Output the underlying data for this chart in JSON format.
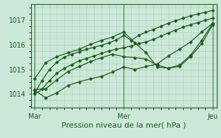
{
  "bg_color": "#cce8d8",
  "grid_color": "#aaccbb",
  "line_color": "#1a5c1a",
  "marker": "D",
  "markersize": 2.5,
  "linewidth": 0.9,
  "xlabel": "Pression niveau de la mer( hPa )",
  "xlabel_fontsize": 8,
  "tick_fontsize": 7,
  "xtick_labels": [
    "Mar",
    "Mer",
    "Jeu"
  ],
  "xtick_positions": [
    0,
    48,
    96
  ],
  "yticks": [
    1014,
    1015,
    1016,
    1017
  ],
  "ylim": [
    1013.45,
    1017.65
  ],
  "xlim": [
    -2,
    98
  ],
  "series": [
    {
      "x": [
        0,
        4,
        8,
        12,
        16,
        20,
        24,
        28,
        32,
        36,
        40,
        44,
        48,
        52,
        56,
        60,
        64,
        68,
        72,
        76,
        80,
        84,
        88,
        92,
        96
      ],
      "y": [
        1014.0,
        1014.2,
        1014.55,
        1014.85,
        1015.05,
        1015.2,
        1015.35,
        1015.45,
        1015.55,
        1015.65,
        1015.75,
        1015.82,
        1015.88,
        1015.95,
        1016.05,
        1016.12,
        1016.22,
        1016.35,
        1016.48,
        1016.6,
        1016.72,
        1016.82,
        1016.9,
        1017.0,
        1017.08
      ]
    },
    {
      "x": [
        0,
        4,
        8,
        12,
        16,
        20,
        24,
        28,
        32,
        36,
        40,
        44,
        48,
        52,
        56,
        60,
        64,
        68,
        72,
        76,
        80,
        84,
        88,
        92,
        96
      ],
      "y": [
        1014.05,
        1014.55,
        1015.0,
        1015.3,
        1015.5,
        1015.62,
        1015.72,
        1015.82,
        1015.9,
        1015.98,
        1016.08,
        1016.2,
        1016.38,
        1016.18,
        1016.38,
        1016.52,
        1016.62,
        1016.75,
        1016.88,
        1016.98,
        1017.08,
        1017.18,
        1017.25,
        1017.32,
        1017.4
      ]
    },
    {
      "x": [
        0,
        6,
        12,
        18,
        24,
        30,
        36,
        42,
        48,
        54,
        60,
        66,
        72,
        78,
        84,
        90,
        96
      ],
      "y": [
        1014.15,
        1013.85,
        1014.05,
        1014.35,
        1014.5,
        1014.62,
        1014.72,
        1014.9,
        1015.1,
        1015.0,
        1015.12,
        1015.22,
        1015.55,
        1015.82,
        1016.12,
        1016.52,
        1016.88
      ]
    },
    {
      "x": [
        0,
        6,
        12,
        18,
        24,
        30,
        36,
        42,
        48,
        54,
        60,
        66,
        72,
        78,
        84,
        90,
        96
      ],
      "y": [
        1014.62,
        1015.28,
        1015.52,
        1015.68,
        1015.82,
        1016.02,
        1016.18,
        1016.32,
        1016.52,
        1016.08,
        1015.68,
        1015.1,
        1015.05,
        1015.18,
        1015.58,
        1016.18,
        1016.88
      ]
    },
    {
      "x": [
        0,
        6,
        12,
        18,
        24,
        30,
        36,
        42,
        48,
        54,
        60,
        66,
        72,
        78,
        84,
        90,
        96
      ],
      "y": [
        1014.18,
        1014.22,
        1014.58,
        1014.92,
        1015.12,
        1015.32,
        1015.48,
        1015.62,
        1015.52,
        1015.48,
        1015.42,
        1015.18,
        1015.05,
        1015.12,
        1015.52,
        1016.05,
        1016.82
      ]
    }
  ],
  "vline_positions": [
    0,
    48,
    96
  ],
  "vline_color": "#2a6a2a"
}
